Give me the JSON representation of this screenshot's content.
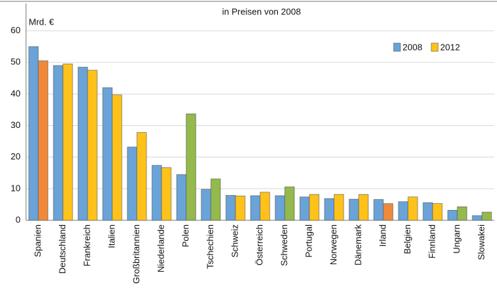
{
  "chart_data": {
    "type": "bar",
    "title": "in Preisen von 2008",
    "y_label": "Mrd. €",
    "categories": [
      "Spanien",
      "Deutschland",
      "Frankreich",
      "Italien",
      "Großbritannien",
      "Niederlande",
      "Polen",
      "Tschechien",
      "Schweiz",
      "Österreich",
      "Schweden",
      "Portugal",
      "Norwegen",
      "Dänemark",
      "Irland",
      "Belgien",
      "Finnland",
      "Ungarn",
      "Slowakei"
    ],
    "series": [
      {
        "name": "2008",
        "color": "#6aa3d8",
        "values": [
          55,
          49,
          48.5,
          42,
          23.2,
          17.4,
          14.5,
          9.8,
          7.9,
          7.8,
          7.8,
          7.4,
          6.9,
          6.7,
          6.6,
          5.9,
          5.6,
          3.2,
          1.5
        ]
      },
      {
        "name": "2012",
        "color": "#ffc21a",
        "values": [
          50.5,
          49.5,
          47.5,
          39.7,
          27.8,
          16.7,
          33.7,
          13.1,
          7.7,
          8.9,
          10.6,
          8.2,
          8.2,
          8.2,
          5.3,
          7.4,
          5.3,
          4.3,
          2.6
        ],
        "colors": [
          "#f08a3a",
          "#ffc21a",
          "#ffc21a",
          "#ffc21a",
          "#ffc21a",
          "#ffc21a",
          "#94b94c",
          "#94b94c",
          "#ffc21a",
          "#ffc21a",
          "#94b94c",
          "#ffc21a",
          "#ffc21a",
          "#ffc21a",
          "#f08a3a",
          "#ffc21a",
          "#ffc21a",
          "#94b94c",
          "#94b94c"
        ]
      }
    ],
    "ylim": [
      0,
      60
    ],
    "yticks": [
      0,
      10,
      20,
      30,
      40,
      50,
      60
    ],
    "grid": true,
    "legend": "top-right"
  }
}
